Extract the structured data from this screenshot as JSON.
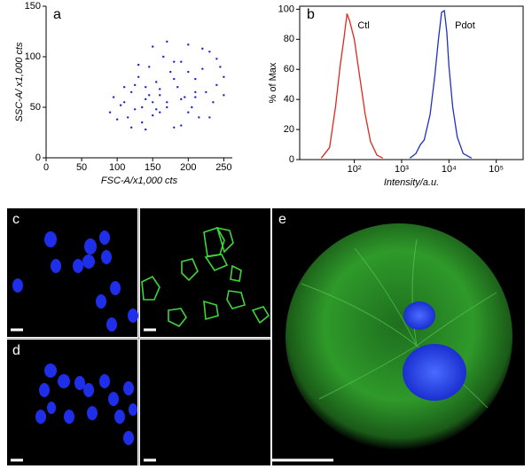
{
  "chart_data": [
    {
      "type": "scatter",
      "panel_label": "a",
      "x_label": "FSC-A/x1,000 cts",
      "y_label": "SSC-A/ x1,000 cts",
      "xlim": [
        0,
        262
      ],
      "ylim": [
        0,
        150
      ],
      "xticks": [
        0,
        50,
        100,
        150,
        200,
        250
      ],
      "yticks": [
        0,
        50,
        100,
        150
      ],
      "color": "#1a22d8",
      "x": [
        90,
        95,
        100,
        105,
        110,
        115,
        120,
        125,
        130,
        135,
        140,
        145,
        150,
        155,
        160,
        165,
        170,
        175,
        180,
        185,
        190,
        195,
        200,
        205,
        210,
        215,
        220,
        225,
        230,
        235,
        240,
        245,
        250,
        120,
        130,
        140,
        150,
        160,
        170,
        180,
        190,
        200,
        210,
        220,
        230,
        240,
        250,
        140,
        150,
        160,
        170,
        180,
        190,
        200,
        210,
        110,
        125,
        135,
        145,
        155
      ],
      "y": [
        45,
        60,
        38,
        52,
        70,
        40,
        65,
        48,
        80,
        35,
        58,
        90,
        42,
        75,
        62,
        100,
        55,
        85,
        30,
        70,
        95,
        60,
        112,
        50,
        78,
        40,
        88,
        65,
        105,
        55,
        72,
        90,
        62,
        30,
        92,
        70,
        110,
        45,
        115,
        95,
        32,
        85,
        60,
        108,
        40,
        98,
        80,
        28,
        55,
        68,
        50,
        78,
        58,
        45,
        65,
        55,
        72,
        50,
        62,
        48
      ]
    },
    {
      "type": "line",
      "panel_label": "b",
      "x_label": "Intensity/a.u.",
      "y_label": "% of Max",
      "xscale": "log",
      "xlim": [
        7,
        370000
      ],
      "ylim": [
        0,
        102
      ],
      "xticks": [
        {
          "value": 100,
          "label": "10²"
        },
        {
          "value": 1000,
          "label": "10³"
        },
        {
          "value": 10000,
          "label": "10⁴"
        },
        {
          "value": 100000,
          "label": "10⁵"
        }
      ],
      "yticks": [
        0,
        20,
        40,
        60,
        80,
        100
      ],
      "series": [
        {
          "name": "Ctl",
          "color": "#e0261f",
          "x": [
            20,
            30,
            40,
            50,
            60,
            70,
            80,
            100,
            130,
            170,
            220,
            300,
            400
          ],
          "values": [
            1,
            8,
            35,
            62,
            80,
            97,
            92,
            80,
            55,
            30,
            12,
            3,
            1
          ]
        },
        {
          "name": "Pdot",
          "color": "#1f2fc8",
          "x": [
            1500,
            2000,
            2500,
            3000,
            4000,
            5000,
            6000,
            7000,
            8000,
            9000,
            10000,
            12000,
            15000,
            20000,
            30000
          ],
          "values": [
            1,
            4,
            10,
            13,
            30,
            55,
            80,
            98,
            99,
            85,
            62,
            35,
            15,
            4,
            1
          ]
        }
      ]
    }
  ],
  "panel_labels": {
    "c": "c",
    "d": "d",
    "e": "e"
  }
}
